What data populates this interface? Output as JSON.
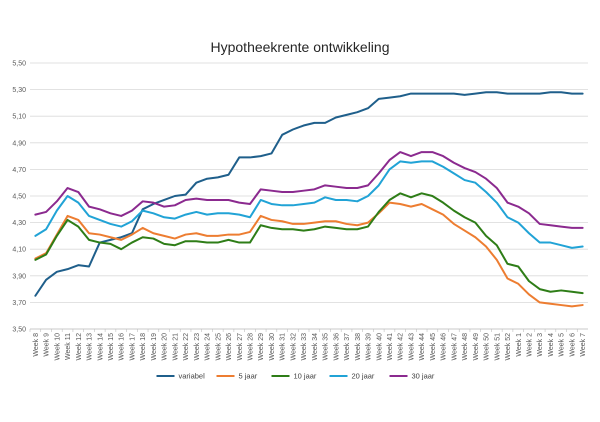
{
  "chart_data": {
    "type": "line",
    "title": "Hypotheekrente ontwikkeling",
    "xlabel": "",
    "ylabel": "",
    "ylim": [
      3.5,
      5.5
    ],
    "yticks": [
      "3,50",
      "3,70",
      "3,90",
      "4,10",
      "4,30",
      "4,50",
      "4,70",
      "4,90",
      "5,10",
      "5,30",
      "5,50"
    ],
    "grid": true,
    "legend_position": "bottom",
    "categories": [
      "Week 8",
      "Week 9",
      "Week 10",
      "Week 11",
      "Week 12",
      "Week 13",
      "Week 14",
      "Week 15",
      "Week 16",
      "Week 17",
      "Week 18",
      "Week 19",
      "Week 20",
      "Week 21",
      "Week 22",
      "Week 23",
      "Week 24",
      "Week 25",
      "Week 26",
      "Week 27",
      "Week 28",
      "Week 29",
      "Week 30",
      "Week 31",
      "Week 32",
      "Week 33",
      "Week 34",
      "Week 35",
      "Week 36",
      "Week 37",
      "Week 38",
      "Week 39",
      "Week 40",
      "Week 41",
      "Week 42",
      "Week 43",
      "Week 44",
      "Week 45",
      "Week 46",
      "Week 47",
      "Week 48",
      "Week 49",
      "Week 50",
      "Week 51",
      "Week 52",
      "Week 1",
      "Week 2",
      "Week 3",
      "Week 4",
      "Week 5",
      "Week 6",
      "Week 7"
    ],
    "series": [
      {
        "name": "variabel",
        "color": "#1f5f8b",
        "values": [
          3.75,
          3.87,
          3.93,
          3.95,
          3.98,
          3.97,
          4.15,
          4.17,
          4.19,
          4.22,
          4.4,
          4.44,
          4.47,
          4.5,
          4.51,
          4.6,
          4.63,
          4.64,
          4.66,
          4.79,
          4.79,
          4.8,
          4.82,
          4.96,
          5.0,
          5.03,
          5.05,
          5.05,
          5.09,
          5.11,
          5.13,
          5.16,
          5.23,
          5.24,
          5.25,
          5.27,
          5.27,
          5.27,
          5.27,
          5.27,
          5.26,
          5.27,
          5.28,
          5.28,
          5.27,
          5.27,
          5.27,
          5.27,
          5.28,
          5.28,
          5.27,
          5.27
        ]
      },
      {
        "name": "5 jaar",
        "color": "#ed7d31",
        "values": [
          4.03,
          4.07,
          4.21,
          4.35,
          4.32,
          4.22,
          4.21,
          4.19,
          4.17,
          4.21,
          4.26,
          4.22,
          4.2,
          4.18,
          4.21,
          4.22,
          4.2,
          4.2,
          4.21,
          4.21,
          4.23,
          4.35,
          4.32,
          4.31,
          4.29,
          4.29,
          4.3,
          4.31,
          4.31,
          4.29,
          4.28,
          4.3,
          4.37,
          4.45,
          4.44,
          4.42,
          4.44,
          4.4,
          4.36,
          4.29,
          4.24,
          4.19,
          4.12,
          4.02,
          3.88,
          3.84,
          3.76,
          3.7,
          3.69,
          3.68,
          3.67,
          3.68
        ]
      },
      {
        "name": "10 jaar",
        "color": "#2e7d17",
        "values": [
          4.02,
          4.06,
          4.2,
          4.32,
          4.27,
          4.17,
          4.15,
          4.14,
          4.1,
          4.15,
          4.19,
          4.18,
          4.14,
          4.13,
          4.16,
          4.16,
          4.15,
          4.15,
          4.17,
          4.15,
          4.15,
          4.28,
          4.26,
          4.25,
          4.25,
          4.24,
          4.25,
          4.27,
          4.26,
          4.25,
          4.25,
          4.27,
          4.38,
          4.47,
          4.52,
          4.49,
          4.52,
          4.5,
          4.45,
          4.39,
          4.34,
          4.3,
          4.2,
          4.13,
          3.99,
          3.97,
          3.86,
          3.8,
          3.78,
          3.79,
          3.78,
          3.77
        ]
      },
      {
        "name": "20 jaar",
        "color": "#21a3d6",
        "values": [
          4.2,
          4.25,
          4.39,
          4.5,
          4.45,
          4.35,
          4.32,
          4.29,
          4.27,
          4.31,
          4.39,
          4.37,
          4.34,
          4.33,
          4.36,
          4.38,
          4.36,
          4.37,
          4.37,
          4.36,
          4.34,
          4.47,
          4.44,
          4.43,
          4.43,
          4.44,
          4.45,
          4.49,
          4.47,
          4.47,
          4.46,
          4.5,
          4.58,
          4.7,
          4.76,
          4.75,
          4.76,
          4.76,
          4.72,
          4.67,
          4.62,
          4.6,
          4.53,
          4.45,
          4.34,
          4.3,
          4.22,
          4.15,
          4.15,
          4.13,
          4.11,
          4.12
        ]
      },
      {
        "name": "30 jaar",
        "color": "#8b2a8f",
        "values": [
          4.36,
          4.38,
          4.46,
          4.56,
          4.53,
          4.42,
          4.4,
          4.37,
          4.35,
          4.39,
          4.46,
          4.45,
          4.42,
          4.43,
          4.47,
          4.48,
          4.47,
          4.47,
          4.47,
          4.45,
          4.44,
          4.55,
          4.54,
          4.53,
          4.53,
          4.54,
          4.55,
          4.58,
          4.57,
          4.56,
          4.56,
          4.58,
          4.67,
          4.77,
          4.83,
          4.8,
          4.83,
          4.83,
          4.8,
          4.75,
          4.71,
          4.68,
          4.63,
          4.56,
          4.45,
          4.42,
          4.37,
          4.29,
          4.28,
          4.27,
          4.26,
          4.26
        ]
      }
    ]
  }
}
